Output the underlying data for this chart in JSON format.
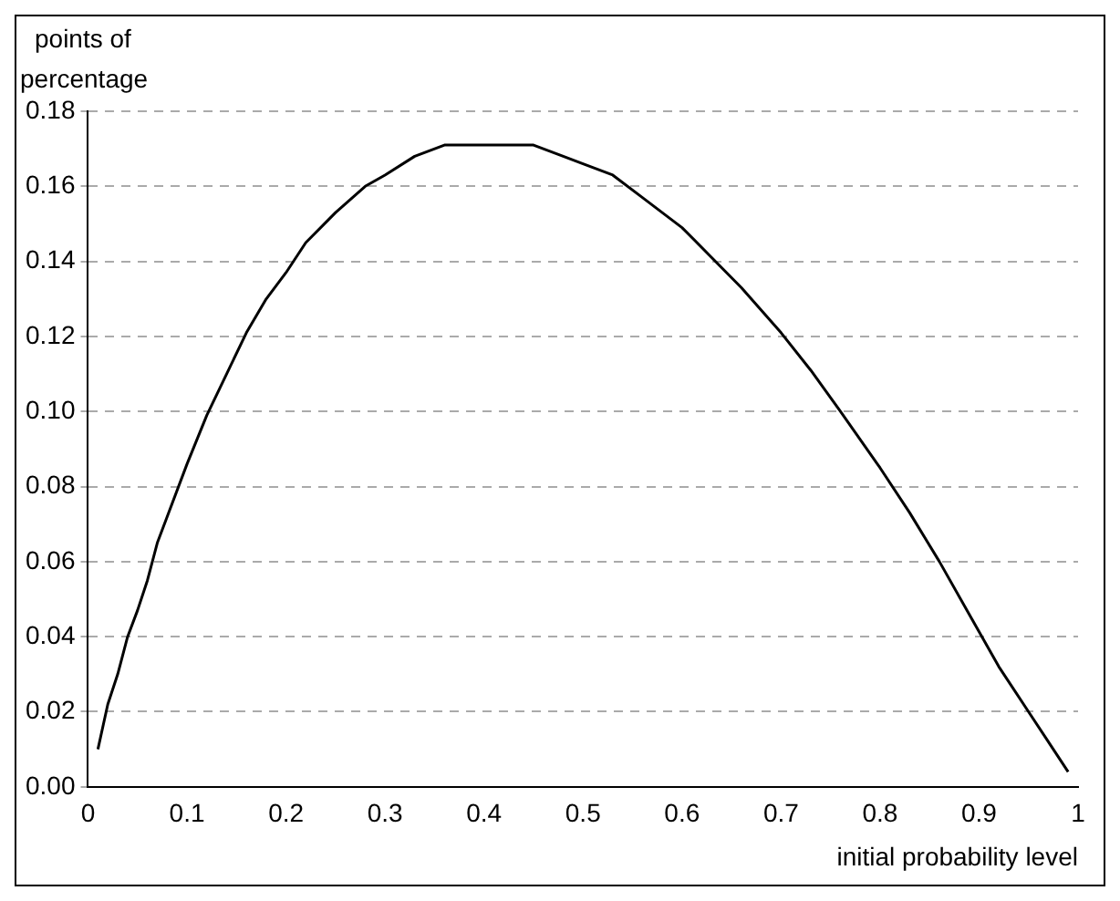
{
  "chart_data": {
    "type": "line",
    "xlabel": "initial probability level",
    "ylabel": "points of percentage",
    "x": [
      0.01,
      0.02,
      0.03,
      0.04,
      0.05,
      0.06,
      0.07,
      0.08,
      0.1,
      0.12,
      0.14,
      0.16,
      0.18,
      0.2,
      0.22,
      0.25,
      0.28,
      0.3,
      0.33,
      0.36,
      0.4,
      0.45,
      0.48,
      0.5,
      0.53,
      0.56,
      0.6,
      0.63,
      0.66,
      0.7,
      0.73,
      0.76,
      0.8,
      0.83,
      0.86,
      0.89,
      0.92,
      0.95,
      0.97,
      0.99
    ],
    "series": [
      {
        "color": "#000000",
        "values": [
          0.01,
          0.022,
          0.03,
          0.04,
          0.047,
          0.055,
          0.065,
          0.072,
          0.086,
          0.099,
          0.11,
          0.121,
          0.13,
          0.137,
          0.145,
          0.153,
          0.16,
          0.163,
          0.168,
          0.171,
          0.171,
          0.171,
          0.168,
          0.166,
          0.163,
          0.157,
          0.149,
          0.141,
          0.133,
          0.121,
          0.111,
          0.1,
          0.085,
          0.073,
          0.06,
          0.046,
          0.032,
          0.02,
          0.012,
          0.004
        ]
      }
    ],
    "xlim": [
      0,
      1
    ],
    "xticks": [
      0,
      0.1,
      0.2,
      0.3,
      0.4,
      0.5,
      0.6,
      0.7,
      0.8,
      0.9,
      1
    ],
    "ylim": [
      0,
      0.18
    ],
    "yticks": [
      {
        "value": 0,
        "label": "0.00"
      },
      {
        "value": 0.02,
        "label": "0.02"
      },
      {
        "value": 0.04,
        "label": "0.04"
      },
      {
        "value": 0.06,
        "label": "0.06"
      },
      {
        "value": 0.08,
        "label": "0.08"
      },
      {
        "value": 0.1,
        "label": "0.10"
      },
      {
        "value": 0.12,
        "label": "0.12"
      },
      {
        "value": 0.14,
        "label": "0.14"
      },
      {
        "value": 0.16,
        "label": "0.16"
      },
      {
        "value": 0.18,
        "label": "0.18"
      }
    ],
    "grid": "y",
    "legend": false,
    "marker": "none",
    "line_style": "solid"
  }
}
